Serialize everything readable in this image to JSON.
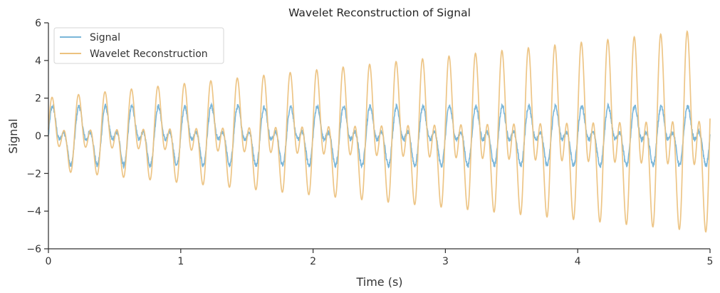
{
  "chart_data": {
    "type": "line",
    "title": "Wavelet Reconstruction of Signal",
    "xlabel": "Time (s)",
    "ylabel": "Signal",
    "xlim": [
      0,
      5
    ],
    "ylim": [
      -6,
      6
    ],
    "xticks": [
      0,
      1,
      2,
      3,
      4,
      5
    ],
    "yticks": [
      -6,
      -4,
      -2,
      0,
      2,
      4,
      6
    ],
    "xtick_labels": [
      "0",
      "1",
      "2",
      "3",
      "4",
      "5"
    ],
    "ytick_labels": [
      "−6",
      "−4",
      "−2",
      "0",
      "2",
      "4",
      "6"
    ],
    "grid": false,
    "legend_position": "top-left",
    "series": [
      {
        "name": "Signal",
        "color": "#7ab6d9",
        "description_of_shape": "sum of 5 Hz and 10 Hz sinusoids (amplitude ~1 each) with small noise, range about -2.1 to 2.1",
        "components": [
          {
            "freq_hz": 5,
            "amplitude": 1.0
          },
          {
            "freq_hz": 10,
            "amplitude": 0.8
          }
        ],
        "noise_amplitude": 0.12,
        "range": [
          -2.1,
          2.1
        ]
      },
      {
        "name": "Wavelet Reconstruction",
        "color": "#ecc27f",
        "description_of_shape": "oscillation whose amplitude grows from about 2 at t=0 to about 6 at t=5",
        "amplitude_start": 2.0,
        "amplitude_end": 5.6,
        "range": [
          -6,
          6
        ]
      }
    ]
  }
}
